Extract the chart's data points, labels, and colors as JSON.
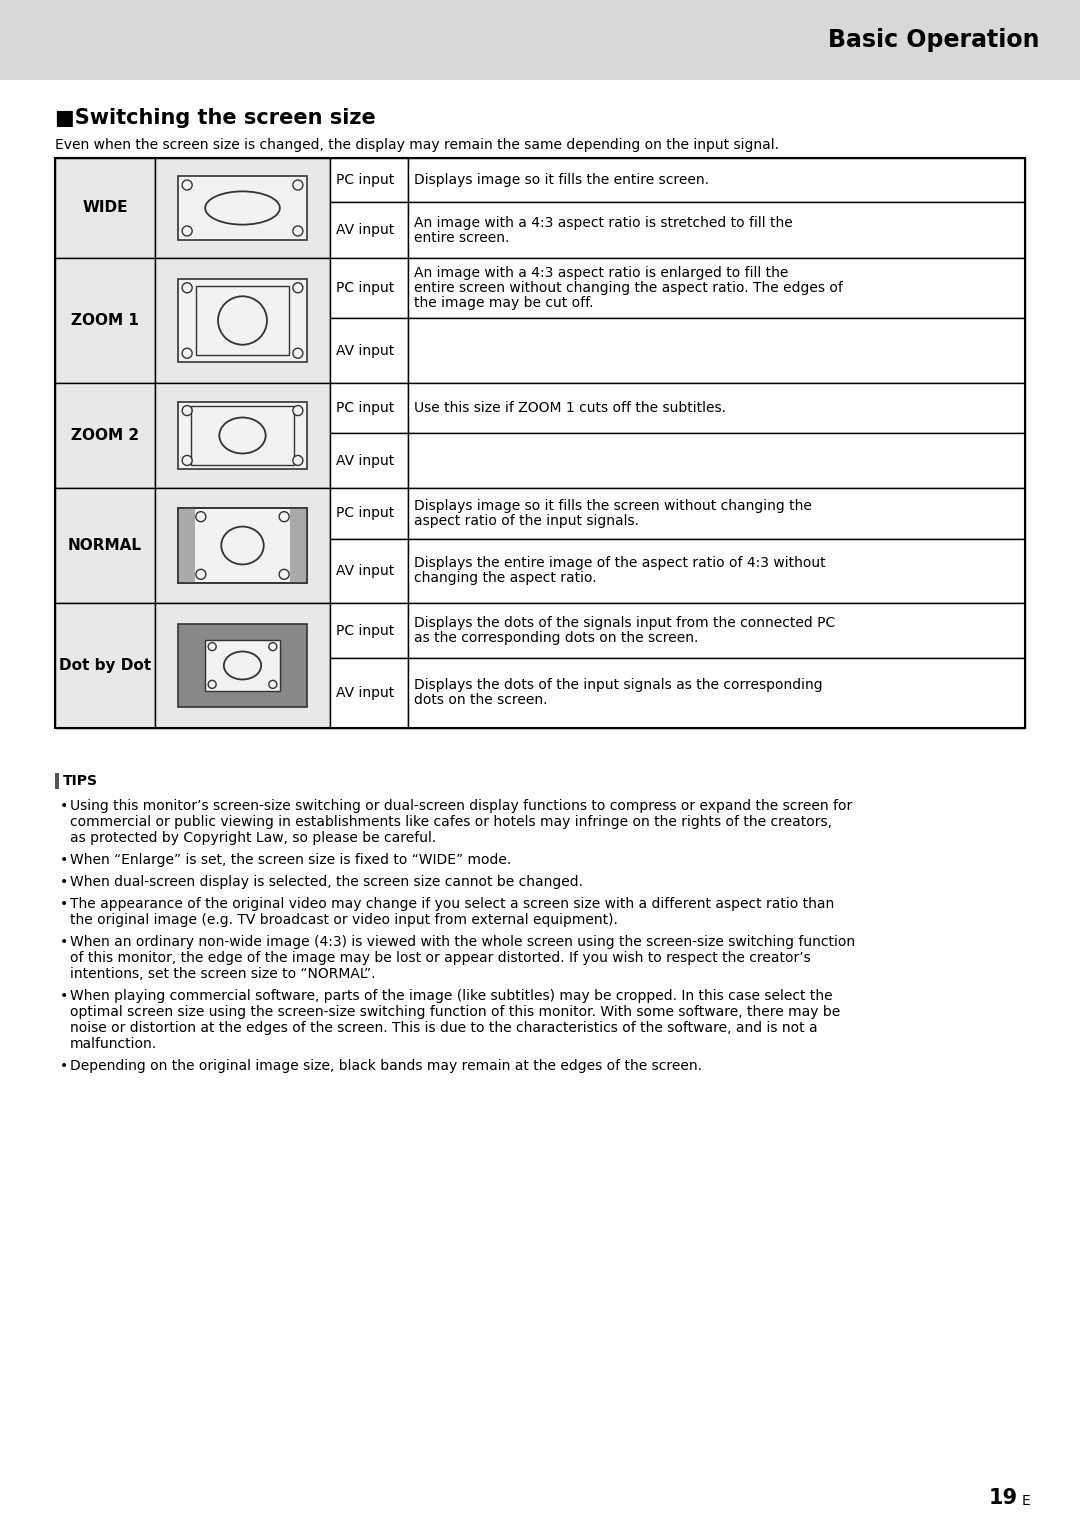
{
  "page_bg": "#ffffff",
  "header_bg": "#d8d8d8",
  "header_text": "Basic Operation",
  "section_title": "■Switching the screen size",
  "section_subtitle": "Even when the screen size is changed, the display may remain the same depending on the input signal.",
  "table_rows": [
    {
      "mode": "WIDE",
      "pc_input": "Displays image so it fills the entire screen.",
      "av_input": "An image with a 4:3 aspect ratio is stretched to fill the entire screen."
    },
    {
      "mode": "ZOOM 1",
      "pc_input": "An image with a 4:3 aspect ratio is enlarged to fill the entire screen without changing the aspect ratio. The edges of the image may be cut off.",
      "av_input": ""
    },
    {
      "mode": "ZOOM 2",
      "pc_input": "Use this size if ZOOM 1 cuts off the subtitles.",
      "av_input": ""
    },
    {
      "mode": "NORMAL",
      "pc_input": "Displays image so it fills the screen without changing the aspect ratio of the input signals.",
      "av_input": "Displays the entire image of the aspect ratio of 4:3 without changing the aspect ratio."
    },
    {
      "mode": "Dot by Dot",
      "pc_input": "Displays the dots of the signals input from the connected PC as the corresponding dots on the screen.",
      "av_input": "Displays the dots of the input signals as the corresponding dots on the screen."
    }
  ],
  "tips_title": "TIPS",
  "tips_items": [
    "Using this monitor’s screen-size switching or dual-screen display functions to compress or expand the screen for commercial or public viewing in establishments like cafes or hotels may infringe on the rights of the creators, as protected by Copyright Law, so please be careful.",
    "When “Enlarge” is set, the screen size is fixed to “WIDE” mode.",
    "When dual-screen display is selected, the screen size cannot be changed.",
    "The appearance of the original video may change if you select a screen size with a different aspect ratio than the original image (e.g. TV broadcast or video input from external equipment).",
    "When an ordinary non-wide image (4:3) is viewed with the whole screen using the screen-size switching function of this monitor, the edge of the image may be lost or appear distorted. If you wish to respect the creator’s intentions, set the screen size to “NORMAL”.",
    "When playing commercial software, parts of the image (like subtitles) may be cropped. In this case select the optimal screen size using the screen-size switching function of this monitor. With some software, there may be noise or distortion at the edges of the screen. This is due to the characteristics of the software, and is not a malfunction.",
    "Depending on the original image size, black bands may remain at the edges of the screen."
  ],
  "page_number": "19",
  "text_color": "#000000",
  "table_border_color": "#000000",
  "cell_bg_mode": "#e8e8e8",
  "cell_bg_white": "#ffffff",
  "icon_bg_light": "#d0d0d0",
  "icon_bg_dark": "#888888"
}
